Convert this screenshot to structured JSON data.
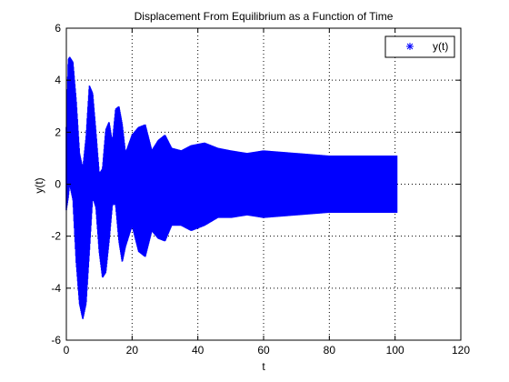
{
  "chart_data": {
    "type": "scatter",
    "title": "Displacement From Equilibrium as a Function of Time",
    "xlabel": "t",
    "ylabel": "y(t)",
    "xlim": [
      0,
      120
    ],
    "ylim": [
      -6,
      6
    ],
    "xticks": [
      "0",
      "20",
      "40",
      "60",
      "80",
      "100",
      "120"
    ],
    "yticks": [
      "-6",
      "-4",
      "-2",
      "0",
      "2",
      "4",
      "6"
    ],
    "grid": true,
    "grid_style": "dotted",
    "legend_position": "top-right",
    "series": [
      {
        "name": "y(t)",
        "color": "#0000ff",
        "marker": "asterisk",
        "x_range": [
          0,
          100.5
        ],
        "envelope": {
          "t": [
            0,
            0.6,
            1,
            2,
            3,
            4,
            5,
            6,
            7,
            8,
            9,
            10,
            11,
            12,
            13,
            14,
            15,
            16,
            17,
            18,
            20,
            22,
            24,
            26,
            28,
            30,
            32,
            35,
            38,
            42,
            46,
            50,
            55,
            60,
            70,
            80,
            90,
            100.5
          ],
          "upper": [
            2.2,
            4.8,
            4.9,
            4.7,
            3.2,
            1.2,
            0.6,
            1.8,
            3.8,
            3.5,
            2.0,
            0.4,
            0.6,
            2.1,
            2.4,
            1.6,
            2.9,
            3.0,
            2.3,
            1.2,
            1.9,
            2.2,
            2.3,
            1.3,
            1.7,
            1.9,
            1.4,
            1.3,
            1.5,
            1.6,
            1.4,
            1.3,
            1.2,
            1.3,
            1.2,
            1.1,
            1.1,
            1.1
          ],
          "lower": [
            -1.0,
            -0.5,
            0.0,
            -0.6,
            -3.0,
            -4.6,
            -5.2,
            -4.6,
            -2.6,
            -0.5,
            -0.9,
            -2.6,
            -3.6,
            -3.4,
            -2.2,
            -0.8,
            -0.8,
            -2.2,
            -3.0,
            -2.4,
            -1.6,
            -2.6,
            -2.8,
            -1.8,
            -2.1,
            -2.2,
            -1.6,
            -1.6,
            -1.8,
            -1.6,
            -1.3,
            -1.3,
            -1.2,
            -1.3,
            -1.2,
            -1.1,
            -1.1,
            -1.1
          ]
        }
      }
    ]
  }
}
